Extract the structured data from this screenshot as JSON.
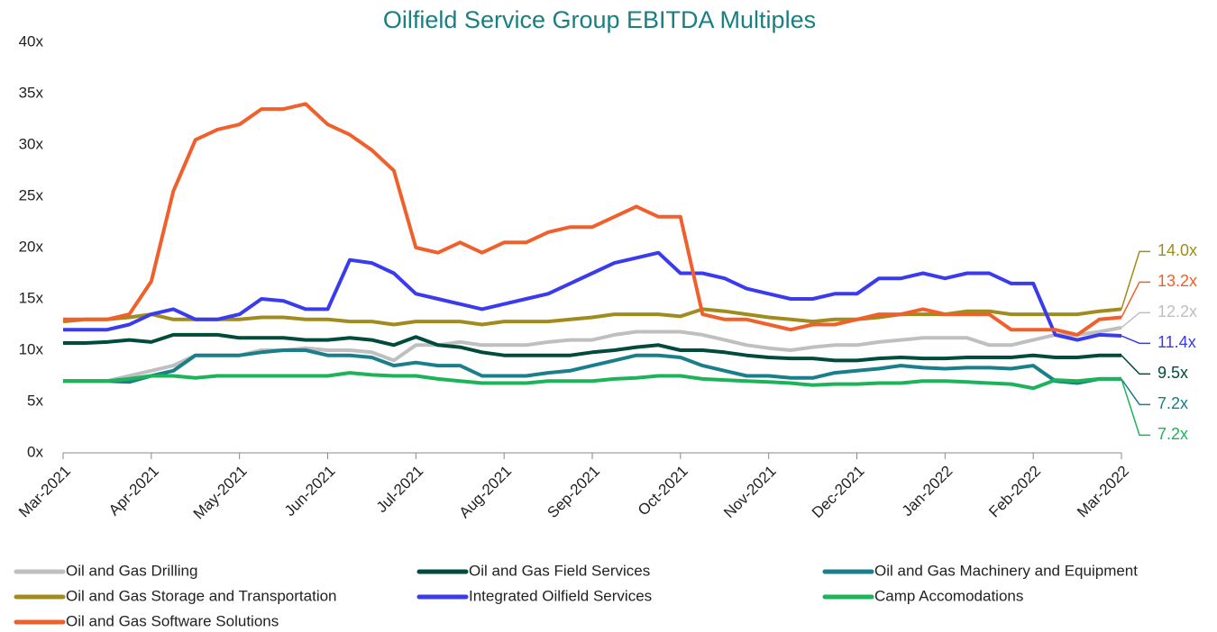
{
  "chart_data": {
    "type": "line",
    "title": "Oilfield Service Group EBITDA Multiples",
    "xlim": [
      0,
      12
    ],
    "xticks": [
      {
        "value": 0,
        "label": "Mar-2021"
      },
      {
        "value": 1,
        "label": "Apr-2021"
      },
      {
        "value": 2,
        "label": "May-2021"
      },
      {
        "value": 3,
        "label": "Jun-2021"
      },
      {
        "value": 4,
        "label": "Jul-2021"
      },
      {
        "value": 5,
        "label": "Aug-2021"
      },
      {
        "value": 6,
        "label": "Sep-2021"
      },
      {
        "value": 7,
        "label": "Oct-2021"
      },
      {
        "value": 8,
        "label": "Nov-2021"
      },
      {
        "value": 9,
        "label": "Dec-2021"
      },
      {
        "value": 10,
        "label": "Jan-2022"
      },
      {
        "value": 11,
        "label": "Feb-2022"
      },
      {
        "value": 12,
        "label": "Mar-2022"
      }
    ],
    "ylim": [
      0,
      40
    ],
    "yticks": [
      {
        "value": 0,
        "label": "0x"
      },
      {
        "value": 5,
        "label": "5x"
      },
      {
        "value": 10,
        "label": "10x"
      },
      {
        "value": 15,
        "label": "15x"
      },
      {
        "value": 20,
        "label": "20x"
      },
      {
        "value": 25,
        "label": "25x"
      },
      {
        "value": 30,
        "label": "30x"
      },
      {
        "value": 35,
        "label": "35x"
      },
      {
        "value": 40,
        "label": "40x"
      }
    ],
    "grid": false,
    "legend": "bottom",
    "x": [
      0,
      0.25,
      0.5,
      0.75,
      1,
      1.25,
      1.5,
      1.75,
      2,
      2.25,
      2.5,
      2.75,
      3,
      3.25,
      3.5,
      3.75,
      4,
      4.25,
      4.5,
      4.75,
      5,
      5.25,
      5.5,
      5.75,
      6,
      6.25,
      6.5,
      6.75,
      7,
      7.25,
      7.5,
      7.75,
      8,
      8.25,
      8.5,
      8.75,
      9,
      9.25,
      9.5,
      9.75,
      10,
      10.25,
      10.5,
      10.75,
      11,
      11.25,
      11.5,
      11.75,
      12
    ],
    "series": [
      {
        "name": "Oil and Gas Drilling",
        "color": "#bfbfbf",
        "values": [
          7,
          7,
          7,
          7.5,
          8,
          8.5,
          9.5,
          9.5,
          9.5,
          10,
          10,
          10.2,
          10,
          10,
          9.8,
          9,
          10.5,
          10.5,
          10.8,
          10.5,
          10.5,
          10.5,
          10.8,
          11,
          11,
          11.5,
          11.8,
          11.8,
          11.8,
          11.5,
          11,
          10.5,
          10.2,
          10,
          10.3,
          10.5,
          10.5,
          10.8,
          11,
          11.2,
          11.2,
          11.2,
          10.5,
          10.5,
          11,
          11.5,
          11.5,
          11.8,
          12.2
        ],
        "value_labels": [
          null,
          null,
          null,
          null,
          null,
          null,
          null,
          null,
          null,
          null,
          null,
          null,
          null,
          null,
          null,
          null,
          null,
          null,
          null,
          null,
          null,
          null,
          null,
          null,
          null,
          null,
          null,
          null,
          null,
          null,
          null,
          null,
          null,
          null,
          null,
          null,
          null,
          null,
          null,
          null,
          null,
          null,
          null,
          null,
          null,
          null,
          null,
          null,
          "12.2x"
        ]
      },
      {
        "name": "Oil and Gas Field Services",
        "color": "#004b3c",
        "values": [
          10.7,
          10.7,
          10.8,
          11,
          10.8,
          11.5,
          11.5,
          11.5,
          11.2,
          11.2,
          11.2,
          11,
          11,
          11.2,
          11,
          10.5,
          11.3,
          10.5,
          10.3,
          9.8,
          9.5,
          9.5,
          9.5,
          9.5,
          9.8,
          10,
          10.3,
          10.5,
          10,
          10,
          9.8,
          9.5,
          9.3,
          9.2,
          9.2,
          9,
          9,
          9.2,
          9.3,
          9.2,
          9.2,
          9.3,
          9.3,
          9.3,
          9.5,
          9.3,
          9.3,
          9.5,
          9.5
        ],
        "value_labels": [
          null,
          null,
          null,
          null,
          null,
          null,
          null,
          null,
          null,
          null,
          null,
          null,
          null,
          null,
          null,
          null,
          null,
          null,
          null,
          null,
          null,
          null,
          null,
          null,
          null,
          null,
          null,
          null,
          null,
          null,
          null,
          null,
          null,
          null,
          null,
          null,
          null,
          null,
          null,
          null,
          null,
          null,
          null,
          null,
          null,
          null,
          null,
          null,
          "9.5x"
        ]
      },
      {
        "name": "Oil and Gas Machinery and Equipment",
        "color": "#1a7f8a",
        "values": [
          7,
          7,
          7,
          6.9,
          7.5,
          8,
          9.5,
          9.5,
          9.5,
          9.8,
          10,
          10,
          9.5,
          9.5,
          9.3,
          8.5,
          8.8,
          8.5,
          8.5,
          7.5,
          7.5,
          7.5,
          7.8,
          8,
          8.5,
          9,
          9.5,
          9.5,
          9.3,
          8.5,
          8,
          7.5,
          7.5,
          7.3,
          7.3,
          7.8,
          8,
          8.2,
          8.5,
          8.3,
          8.2,
          8.3,
          8.3,
          8.2,
          8.5,
          7,
          6.8,
          7.2,
          7.2
        ],
        "value_labels": [
          null,
          null,
          null,
          null,
          null,
          null,
          null,
          null,
          null,
          null,
          null,
          null,
          null,
          null,
          null,
          null,
          null,
          null,
          null,
          null,
          null,
          null,
          null,
          null,
          null,
          null,
          null,
          null,
          null,
          null,
          null,
          null,
          null,
          null,
          null,
          null,
          null,
          null,
          null,
          null,
          null,
          null,
          null,
          null,
          null,
          null,
          null,
          null,
          "7.2x"
        ]
      },
      {
        "name": "Oil and Gas Storage and Transportation",
        "color": "#a08c1e",
        "values": [
          12.8,
          13,
          13,
          13.2,
          13.5,
          13,
          13,
          13,
          13,
          13.2,
          13.2,
          13,
          13,
          12.8,
          12.8,
          12.5,
          12.8,
          12.8,
          12.8,
          12.5,
          12.8,
          12.8,
          12.8,
          13,
          13.2,
          13.5,
          13.5,
          13.5,
          13.3,
          14,
          13.8,
          13.5,
          13.2,
          13,
          12.8,
          13,
          13,
          13.2,
          13.5,
          13.5,
          13.5,
          13.8,
          13.8,
          13.5,
          13.5,
          13.5,
          13.5,
          13.8,
          14.0
        ],
        "value_labels": [
          null,
          null,
          null,
          null,
          null,
          null,
          null,
          null,
          null,
          null,
          null,
          null,
          null,
          null,
          null,
          null,
          null,
          null,
          null,
          null,
          null,
          null,
          null,
          null,
          null,
          null,
          null,
          null,
          null,
          null,
          null,
          null,
          null,
          null,
          null,
          null,
          null,
          null,
          null,
          null,
          null,
          null,
          null,
          null,
          null,
          null,
          null,
          null,
          "14.0x"
        ]
      },
      {
        "name": "Integrated Oilfield Services",
        "color": "#3a3aee",
        "values": [
          12,
          12,
          12,
          12.5,
          13.5,
          14,
          13,
          13,
          13.5,
          15,
          14.8,
          14,
          14,
          18.8,
          18.5,
          17.5,
          15.5,
          15,
          14.5,
          14,
          14.5,
          15,
          15.5,
          16.5,
          17.5,
          18.5,
          19,
          19.5,
          17.5,
          17.5,
          17,
          16,
          15.5,
          15,
          15,
          15.5,
          15.5,
          17,
          17,
          17.5,
          17,
          17.5,
          17.5,
          16.5,
          16.5,
          11.5,
          11,
          11.5,
          11.4
        ],
        "value_labels": [
          null,
          null,
          null,
          null,
          null,
          null,
          null,
          null,
          null,
          null,
          null,
          null,
          null,
          null,
          null,
          null,
          null,
          null,
          null,
          null,
          null,
          null,
          null,
          null,
          null,
          null,
          null,
          null,
          null,
          null,
          null,
          null,
          null,
          null,
          null,
          null,
          null,
          null,
          null,
          null,
          null,
          null,
          null,
          null,
          null,
          null,
          null,
          null,
          "11.4x"
        ]
      },
      {
        "name": "Camp Accomodations",
        "color": "#1db35a",
        "values": [
          7,
          7,
          7,
          7.2,
          7.5,
          7.5,
          7.3,
          7.5,
          7.5,
          7.5,
          7.5,
          7.5,
          7.5,
          7.8,
          7.6,
          7.5,
          7.5,
          7.2,
          7,
          6.8,
          6.8,
          6.8,
          7,
          7,
          7,
          7.2,
          7.3,
          7.5,
          7.5,
          7.2,
          7.1,
          7,
          6.9,
          6.8,
          6.6,
          6.7,
          6.7,
          6.8,
          6.8,
          7,
          7,
          6.9,
          6.8,
          6.7,
          6.3,
          7.1,
          7,
          7.2,
          7.2
        ],
        "value_labels": [
          null,
          null,
          null,
          null,
          null,
          null,
          null,
          null,
          null,
          null,
          null,
          null,
          null,
          null,
          null,
          null,
          null,
          null,
          null,
          null,
          null,
          null,
          null,
          null,
          null,
          null,
          null,
          null,
          null,
          null,
          null,
          null,
          null,
          null,
          null,
          null,
          null,
          null,
          null,
          null,
          null,
          null,
          null,
          null,
          null,
          null,
          null,
          null,
          "7.2x"
        ]
      },
      {
        "name": "Oil and Gas Software Solutions",
        "color": "#f0602c",
        "values": [
          13,
          13,
          13,
          13.5,
          16.7,
          25.5,
          30.5,
          31.5,
          32,
          33.5,
          33.5,
          34,
          32,
          31,
          29.5,
          27.5,
          20,
          19.5,
          20.5,
          19.5,
          20.5,
          20.5,
          21.5,
          22,
          22,
          23,
          24,
          23,
          23,
          13.5,
          13,
          13,
          12.5,
          12,
          12.5,
          12.5,
          13,
          13.5,
          13.5,
          14,
          13.5,
          13.5,
          13.5,
          12,
          12,
          12,
          11.5,
          13,
          13.2
        ],
        "value_labels": [
          null,
          null,
          null,
          null,
          null,
          null,
          null,
          null,
          null,
          null,
          null,
          null,
          null,
          null,
          null,
          null,
          null,
          null,
          null,
          null,
          null,
          null,
          null,
          null,
          null,
          null,
          null,
          null,
          null,
          null,
          null,
          null,
          null,
          null,
          null,
          null,
          null,
          null,
          null,
          null,
          null,
          null,
          null,
          null,
          null,
          null,
          null,
          null,
          "13.2x"
        ]
      }
    ]
  }
}
